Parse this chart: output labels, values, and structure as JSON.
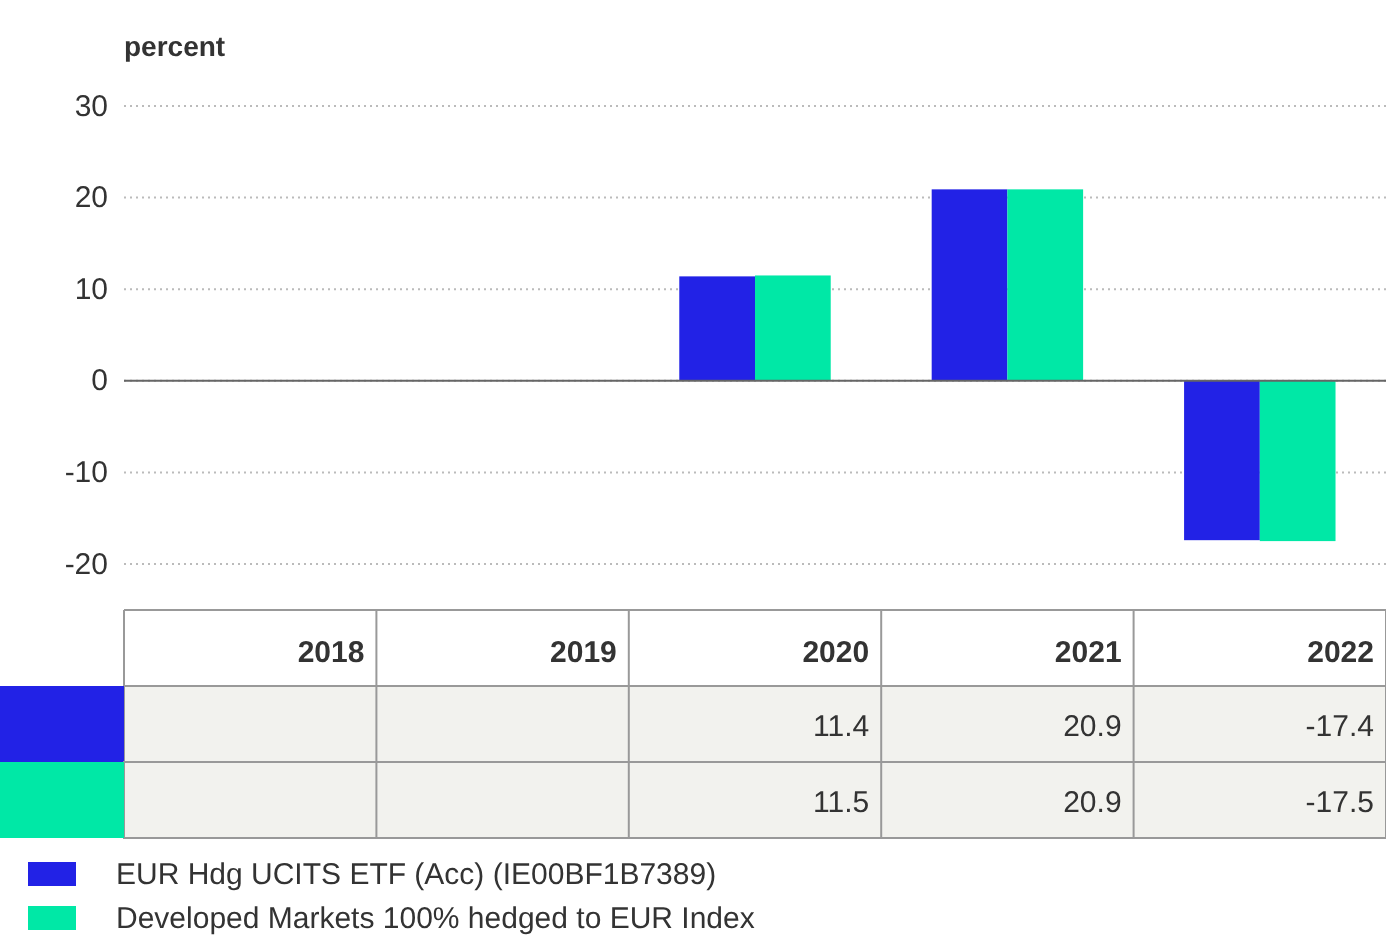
{
  "chart_data": {
    "type": "bar",
    "ylabel": "percent",
    "categories": [
      "2018",
      "2019",
      "2020",
      "2021",
      "2022"
    ],
    "series": [
      {
        "name": "EUR Hdg UCITS ETF (Acc) (IE00BF1B7389)",
        "color": "#2222e6",
        "values": [
          null,
          null,
          11.4,
          20.9,
          -17.4
        ]
      },
      {
        "name": "Developed Markets 100% hedged to EUR Index",
        "color": "#00e8a6",
        "values": [
          null,
          null,
          11.5,
          20.9,
          -17.5
        ]
      }
    ],
    "ylim": [
      -20,
      30
    ],
    "yticks": [
      -20,
      -10,
      0,
      10,
      20,
      30
    ],
    "grid": "y",
    "data_labels": true,
    "legend": "bottom"
  }
}
